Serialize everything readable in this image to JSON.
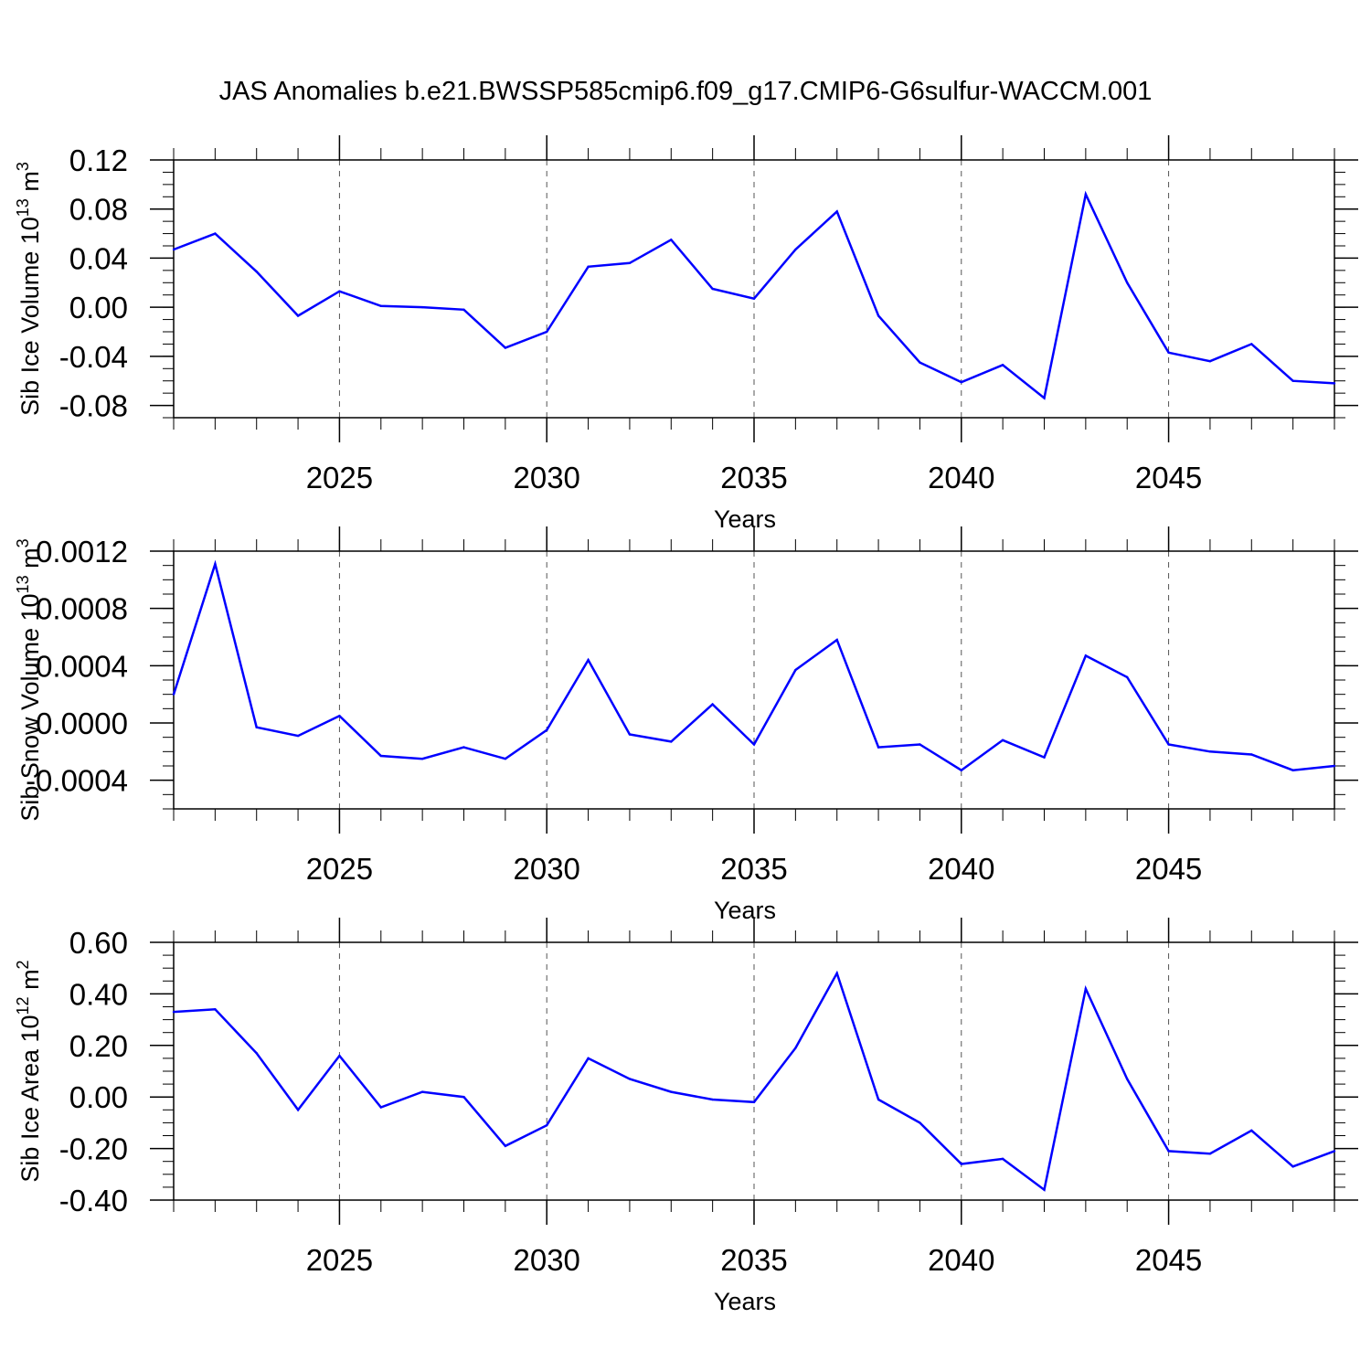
{
  "title": "JAS Anomalies b.e21.BWSSP585cmip6.f09_g17.CMIP6-G6sulfur-WACCM.001",
  "line_color": "#0000ff",
  "chart_data": [
    {
      "type": "line",
      "title": "JAS Anomalies b.e21.BWSSP585cmip6.f09_g17.CMIP6-G6sulfur-WACCM.001",
      "xlabel": "Years",
      "ylabel": {
        "main": "Sib Ice Volume 10",
        "sup": "13",
        "tail": " m",
        "sup2": "3"
      },
      "xlim": [
        2021,
        2049
      ],
      "ylim": [
        -0.09,
        0.12
      ],
      "xticks": [
        2025,
        2030,
        2035,
        2040,
        2045
      ],
      "xtick_labels": [
        "2025",
        "2030",
        "2035",
        "2040",
        "2045"
      ],
      "yticks": [
        0.12,
        0.08,
        0.04,
        0.0,
        -0.04,
        -0.08
      ],
      "ytick_labels": [
        "0.12",
        "0.08",
        "0.04",
        "0.00",
        "-0.04",
        "-0.08"
      ],
      "x": [
        2021,
        2022,
        2023,
        2024,
        2025,
        2026,
        2027,
        2028,
        2029,
        2030,
        2031,
        2032,
        2033,
        2034,
        2035,
        2036,
        2037,
        2038,
        2039,
        2040,
        2041,
        2042,
        2043,
        2044,
        2045,
        2046,
        2047,
        2048,
        2049
      ],
      "series": [
        {
          "values": [
            0.047,
            0.06,
            0.029,
            -0.007,
            0.013,
            0.001,
            0.0,
            -0.002,
            -0.033,
            -0.02,
            0.033,
            0.036,
            0.055,
            0.015,
            0.007,
            0.047,
            0.078,
            -0.007,
            -0.045,
            -0.061,
            -0.047,
            -0.074,
            0.092,
            0.02,
            -0.037,
            -0.044,
            -0.03,
            -0.06,
            -0.062
          ]
        }
      ]
    },
    {
      "type": "line",
      "xlabel": "Years",
      "ylabel": {
        "main": "Sib Snow Volume 10",
        "sup": "13",
        "tail": " m",
        "sup2": "3"
      },
      "xlim": [
        2021,
        2049
      ],
      "ylim": [
        -0.0006,
        0.0012
      ],
      "xticks": [
        2025,
        2030,
        2035,
        2040,
        2045
      ],
      "xtick_labels": [
        "2025",
        "2030",
        "2035",
        "2040",
        "2045"
      ],
      "yticks": [
        0.0012,
        0.0008,
        0.0004,
        0.0,
        -0.0004
      ],
      "ytick_labels": [
        "0.0012",
        "0.0008",
        "0.0004",
        "0.0000",
        "-0.0004"
      ],
      "x": [
        2021,
        2022,
        2023,
        2024,
        2025,
        2026,
        2027,
        2028,
        2029,
        2030,
        2031,
        2032,
        2033,
        2034,
        2035,
        2036,
        2037,
        2038,
        2039,
        2040,
        2041,
        2042,
        2043,
        2044,
        2045,
        2046,
        2047,
        2048,
        2049
      ],
      "series": [
        {
          "values": [
            0.0002,
            0.00111,
            -3e-05,
            -9e-05,
            5e-05,
            -0.00023,
            -0.00025,
            -0.00017,
            -0.00025,
            -5e-05,
            0.00044,
            -8e-05,
            -0.00013,
            0.00013,
            -0.00015,
            0.00037,
            0.00058,
            -0.00017,
            -0.00015,
            -0.00033,
            -0.00012,
            -0.00024,
            0.00047,
            0.00032,
            -0.00015,
            -0.0002,
            -0.00022,
            -0.00033,
            -0.0003
          ]
        }
      ]
    },
    {
      "type": "line",
      "xlabel": "Years",
      "ylabel": {
        "main": "Sib Ice Area 10",
        "sup": "12",
        "tail": " m",
        "sup2": "2"
      },
      "xlim": [
        2021,
        2049
      ],
      "ylim": [
        -0.4,
        0.6
      ],
      "xticks": [
        2025,
        2030,
        2035,
        2040,
        2045
      ],
      "xtick_labels": [
        "2025",
        "2030",
        "2035",
        "2040",
        "2045"
      ],
      "yticks": [
        0.6,
        0.4,
        0.2,
        0.0,
        -0.2,
        -0.4
      ],
      "ytick_labels": [
        "0.60",
        "0.40",
        "0.20",
        "0.00",
        "-0.20",
        "-0.40"
      ],
      "x": [
        2021,
        2022,
        2023,
        2024,
        2025,
        2026,
        2027,
        2028,
        2029,
        2030,
        2031,
        2032,
        2033,
        2034,
        2035,
        2036,
        2037,
        2038,
        2039,
        2040,
        2041,
        2042,
        2043,
        2044,
        2045,
        2046,
        2047,
        2048,
        2049
      ],
      "series": [
        {
          "values": [
            0.33,
            0.34,
            0.17,
            -0.05,
            0.16,
            -0.04,
            0.02,
            0.0,
            -0.19,
            -0.11,
            0.15,
            0.07,
            0.02,
            -0.01,
            -0.02,
            0.19,
            0.48,
            -0.01,
            -0.1,
            -0.26,
            -0.24,
            -0.36,
            0.42,
            0.07,
            -0.21,
            -0.22,
            -0.13,
            -0.27,
            -0.21
          ]
        }
      ]
    }
  ]
}
